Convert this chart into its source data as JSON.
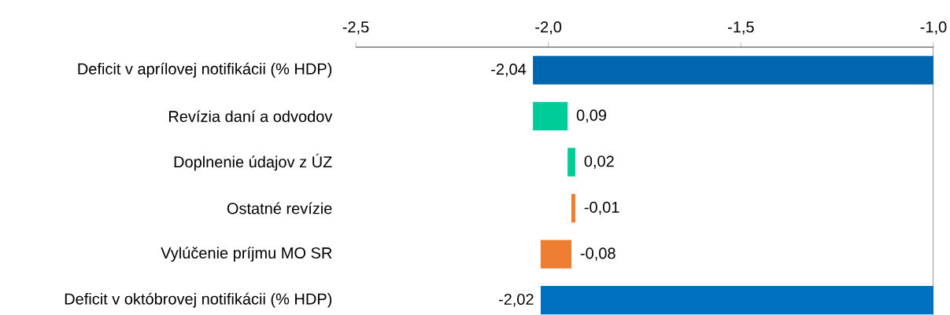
{
  "chart_data": {
    "type": "bar",
    "orientation": "horizontal",
    "categories": [
      "Deficit v aprílovej notifikácii (% HDP)",
      "Revízia daní a odvodov",
      "Doplnenie údajov z ÚZ",
      "Ostatné revízie",
      "Vylúčenie príjmu MO SR",
      "Deficit v októbrovej notifikácii (% HDP)"
    ],
    "values": [
      -2.04,
      0.09,
      0.02,
      -0.01,
      -0.08,
      -2.02
    ],
    "base": [
      null,
      -2.04,
      -1.95,
      -1.93,
      -1.94,
      null
    ],
    "colors": [
      "#0066ad",
      "#00cc99",
      "#00cc99",
      "#ed7d31",
      "#ed7d31",
      "#0070c0"
    ],
    "value_labels": [
      "-2,04",
      "0,09",
      "0,02",
      "-0,01",
      "-0,08",
      "-2,02"
    ],
    "xlim": [
      -2.5,
      -1.0
    ],
    "xticks": [
      {
        "value": -2.5,
        "label": "-2,5"
      },
      {
        "value": -2.0,
        "label": "-2,0"
      },
      {
        "value": -1.5,
        "label": "-1,5"
      },
      {
        "value": -1.0,
        "label": "-1,0"
      }
    ],
    "grid": false
  }
}
